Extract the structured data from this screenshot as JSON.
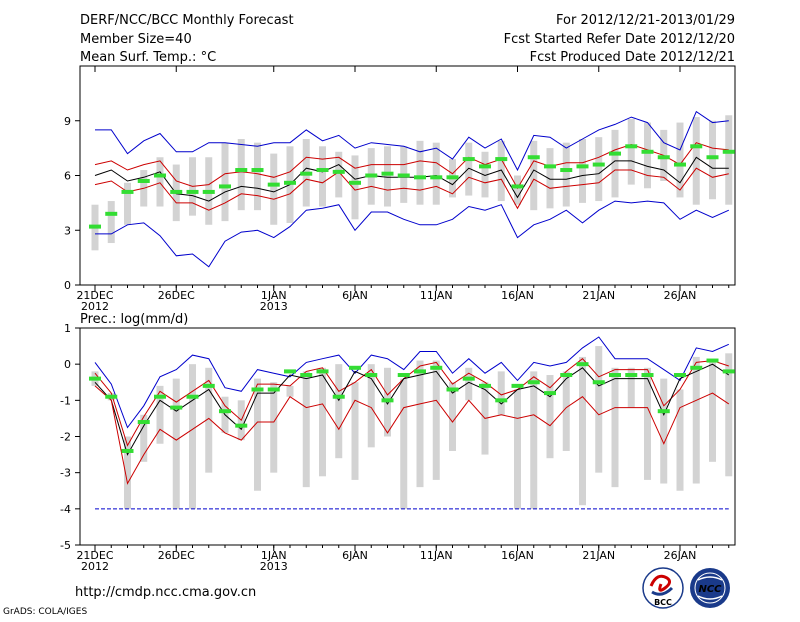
{
  "header": {
    "title": "DERF/NCC/BCC Monthly Forecast",
    "member_size": "Member Size=40",
    "variable1": "Mean Surf. Temp.: °C",
    "period": "For 2012/12/21-2013/01/29",
    "start_date": "Fcst Started Refer Date 2012/12/20",
    "produced_date": "Fcst Produced Date 2012/12/21"
  },
  "footer": {
    "url": "http://cmdp.ncc.cma.gov.cn",
    "grads": "GrADS: COLA/IGES",
    "logo_bcc": "BCC",
    "logo_ncc": "NCC"
  },
  "colors": {
    "bar": "#d3d3d3",
    "max_line": "#0000cc",
    "spread_line": "#cc0000",
    "mean_line": "#000000",
    "median_mark": "#33dd33",
    "axis": "#000000"
  },
  "chart_data": [
    {
      "type": "boxplot-line",
      "title": "Mean Surf. Temp.: °C",
      "x": [
        "12/21",
        "12/22",
        "12/23",
        "12/24",
        "12/25",
        "12/26",
        "12/27",
        "12/28",
        "12/29",
        "12/30",
        "12/31",
        "01/01",
        "01/02",
        "01/03",
        "01/04",
        "01/05",
        "01/06",
        "01/07",
        "01/08",
        "01/09",
        "01/10",
        "01/11",
        "01/12",
        "01/13",
        "01/14",
        "01/15",
        "01/16",
        "01/17",
        "01/18",
        "01/19",
        "01/20",
        "01/21",
        "01/22",
        "01/23",
        "01/24",
        "01/25",
        "01/26",
        "01/27",
        "01/28",
        "01/29"
      ],
      "xticks": [
        {
          "idx": 0,
          "label": "21DEC",
          "sub": "2012"
        },
        {
          "idx": 5,
          "label": "26DEC",
          "sub": ""
        },
        {
          "idx": 11,
          "label": "1JAN",
          "sub": "2013"
        },
        {
          "idx": 16,
          "label": "6JAN",
          "sub": ""
        },
        {
          "idx": 21,
          "label": "11JAN",
          "sub": ""
        },
        {
          "idx": 26,
          "label": "16JAN",
          "sub": ""
        },
        {
          "idx": 31,
          "label": "21JAN",
          "sub": ""
        },
        {
          "idx": 36,
          "label": "26JAN",
          "sub": ""
        }
      ],
      "ylim": [
        0,
        12
      ],
      "yticks": [
        0,
        3,
        6,
        9
      ],
      "box_low": [
        1.9,
        2.3,
        3.3,
        4.3,
        4.3,
        3.5,
        3.8,
        3.3,
        3.5,
        4.1,
        4.1,
        3.3,
        3.4,
        4.3,
        4.3,
        4.8,
        3.6,
        4.4,
        4.3,
        4.5,
        4.4,
        4.4,
        4.8,
        4.9,
        4.8,
        4.6,
        4.4,
        4.1,
        4.2,
        4.3,
        4.5,
        4.6,
        4.8,
        5.5,
        5.3,
        5.7,
        4.8,
        4.4,
        4.7,
        4.4
      ],
      "box_high": [
        4.4,
        4.6,
        5.6,
        6.3,
        7.0,
        6.6,
        7.0,
        7.0,
        7.8,
        8.0,
        7.8,
        7.2,
        7.6,
        8.0,
        7.6,
        7.3,
        7.1,
        7.5,
        7.6,
        7.6,
        7.9,
        7.8,
        6.9,
        7.8,
        7.3,
        7.9,
        6.0,
        7.9,
        7.5,
        7.8,
        8.0,
        8.1,
        8.5,
        9.1,
        8.9,
        8.5,
        8.9,
        9.2,
        9.0,
        9.3
      ],
      "median": [
        3.2,
        3.9,
        5.1,
        5.7,
        6.0,
        5.1,
        5.1,
        5.1,
        5.4,
        6.3,
        6.3,
        5.5,
        5.6,
        6.1,
        6.3,
        6.2,
        5.6,
        6.0,
        6.1,
        6.0,
        5.9,
        5.9,
        5.9,
        6.9,
        6.5,
        6.9,
        5.4,
        7.0,
        6.5,
        6.3,
        6.5,
        6.6,
        7.2,
        7.6,
        7.3,
        7.0,
        6.6,
        7.6,
        7.0,
        7.3
      ],
      "series": [
        {
          "name": "max",
          "color": "#0000cc",
          "values": [
            8.5,
            8.5,
            7.2,
            7.9,
            8.3,
            7.3,
            7.3,
            7.8,
            7.8,
            7.7,
            7.6,
            7.8,
            7.8,
            8.5,
            7.9,
            8.2,
            7.5,
            7.8,
            7.7,
            7.6,
            7.3,
            7.5,
            6.9,
            8.1,
            7.5,
            8.0,
            6.3,
            8.2,
            8.1,
            7.5,
            8.0,
            8.5,
            8.8,
            9.2,
            8.9,
            7.8,
            7.4,
            9.5,
            8.9,
            9.0
          ]
        },
        {
          "name": "upper",
          "color": "#cc0000",
          "values": [
            6.6,
            6.8,
            6.3,
            6.6,
            6.8,
            5.7,
            5.4,
            5.5,
            6.1,
            6.2,
            6.1,
            5.9,
            6.2,
            7.0,
            6.9,
            7.0,
            6.4,
            6.6,
            6.6,
            6.6,
            6.8,
            6.7,
            6.1,
            7.0,
            6.6,
            6.9,
            5.3,
            6.8,
            6.5,
            6.7,
            6.7,
            7.0,
            7.4,
            7.7,
            7.4,
            7.1,
            6.6,
            7.8,
            7.5,
            7.4
          ]
        },
        {
          "name": "mean",
          "color": "#000000",
          "values": [
            6.0,
            6.3,
            5.7,
            5.9,
            6.2,
            5.0,
            4.9,
            4.6,
            5.1,
            5.4,
            5.3,
            5.1,
            5.5,
            6.4,
            6.2,
            6.6,
            5.8,
            6.0,
            5.9,
            5.9,
            5.9,
            6.0,
            5.5,
            6.4,
            6.0,
            6.3,
            4.8,
            6.3,
            5.8,
            5.8,
            6.0,
            6.1,
            6.8,
            6.8,
            6.5,
            6.3,
            5.6,
            7.0,
            6.4,
            6.4
          ]
        },
        {
          "name": "lower",
          "color": "#cc0000",
          "values": [
            5.5,
            5.7,
            5.1,
            5.3,
            5.6,
            4.5,
            4.5,
            4.1,
            4.5,
            5.0,
            4.9,
            4.7,
            5.0,
            5.8,
            5.6,
            6.2,
            5.2,
            5.4,
            5.2,
            5.3,
            5.2,
            5.4,
            5.0,
            5.9,
            5.6,
            5.8,
            4.2,
            5.8,
            5.3,
            5.4,
            5.5,
            5.6,
            6.3,
            6.3,
            6.0,
            5.9,
            5.2,
            6.4,
            5.9,
            6.1
          ]
        },
        {
          "name": "min",
          "color": "#0000cc",
          "values": [
            2.8,
            2.8,
            3.3,
            3.4,
            2.7,
            1.6,
            1.7,
            1.0,
            2.4,
            2.9,
            3.0,
            2.6,
            3.2,
            4.1,
            4.2,
            4.4,
            3.0,
            4.0,
            4.0,
            3.6,
            3.3,
            3.3,
            3.6,
            4.3,
            4.1,
            4.4,
            2.6,
            3.3,
            3.6,
            4.1,
            3.4,
            4.1,
            4.6,
            4.5,
            4.6,
            4.5,
            3.6,
            4.1,
            3.7,
            4.1
          ]
        }
      ]
    },
    {
      "type": "boxplot-line",
      "title": "Prec.: log(mm/d)",
      "x": [
        "12/21",
        "12/22",
        "12/23",
        "12/24",
        "12/25",
        "12/26",
        "12/27",
        "12/28",
        "12/29",
        "12/30",
        "12/31",
        "01/01",
        "01/02",
        "01/03",
        "01/04",
        "01/05",
        "01/06",
        "01/07",
        "01/08",
        "01/09",
        "01/10",
        "01/11",
        "01/12",
        "01/13",
        "01/14",
        "01/15",
        "01/16",
        "01/17",
        "01/18",
        "01/19",
        "01/20",
        "01/21",
        "01/22",
        "01/23",
        "01/24",
        "01/25",
        "01/26",
        "01/27",
        "01/28",
        "01/29"
      ],
      "xticks": [
        {
          "idx": 0,
          "label": "21DEC",
          "sub": "2012"
        },
        {
          "idx": 5,
          "label": "26DEC",
          "sub": ""
        },
        {
          "idx": 11,
          "label": "1JAN",
          "sub": "2013"
        },
        {
          "idx": 16,
          "label": "6JAN",
          "sub": ""
        },
        {
          "idx": 21,
          "label": "11JAN",
          "sub": ""
        },
        {
          "idx": 26,
          "label": "16JAN",
          "sub": ""
        },
        {
          "idx": 31,
          "label": "21JAN",
          "sub": ""
        },
        {
          "idx": 36,
          "label": "26JAN",
          "sub": ""
        }
      ],
      "ylim": [
        -5,
        1
      ],
      "yticks": [
        -5,
        -4,
        -3,
        -2,
        -1,
        0,
        1
      ],
      "box_low": [
        -0.6,
        -1.0,
        -4.0,
        -2.7,
        -2.2,
        -4.0,
        -4.0,
        -3.0,
        -1.9,
        -2.1,
        -3.5,
        -3.0,
        -0.9,
        -3.4,
        -3.1,
        -2.6,
        -3.2,
        -2.3,
        -2.0,
        -4.0,
        -3.4,
        -3.2,
        -2.4,
        -1.0,
        -2.5,
        -1.4,
        -4.0,
        -4.0,
        -2.6,
        -2.4,
        -3.9,
        -3.0,
        -3.4,
        -1.2,
        -3.2,
        -3.3,
        -3.5,
        -3.3,
        -2.7,
        -3.1
      ],
      "box_high": [
        -0.2,
        -0.8,
        -2.0,
        -1.4,
        -0.6,
        -0.4,
        0.0,
        -0.1,
        -0.9,
        -1.0,
        -0.4,
        -0.5,
        -0.6,
        -0.2,
        -0.1,
        0.0,
        -0.5,
        0.0,
        -0.1,
        -0.4,
        0.1,
        0.1,
        -0.5,
        -0.1,
        -0.5,
        -0.2,
        -0.7,
        -0.2,
        -0.3,
        -0.2,
        0.2,
        0.5,
        -0.1,
        -0.1,
        -0.1,
        -0.4,
        -0.7,
        0.2,
        0.1,
        0.3
      ],
      "median": [
        -0.4,
        -0.9,
        -2.4,
        -1.6,
        -0.9,
        -1.2,
        -0.9,
        -0.6,
        -1.3,
        -1.7,
        -0.7,
        -0.7,
        -0.2,
        -0.3,
        -0.2,
        -0.9,
        -0.1,
        -0.3,
        -1.0,
        -0.3,
        -0.2,
        -0.1,
        -0.7,
        -0.4,
        -0.6,
        -1.0,
        -0.6,
        -0.5,
        -0.8,
        -0.3,
        0.0,
        -0.5,
        -0.3,
        -0.3,
        -0.3,
        -1.3,
        -0.3,
        -0.1,
        0.1,
        -0.2
      ]
    }
  ]
}
